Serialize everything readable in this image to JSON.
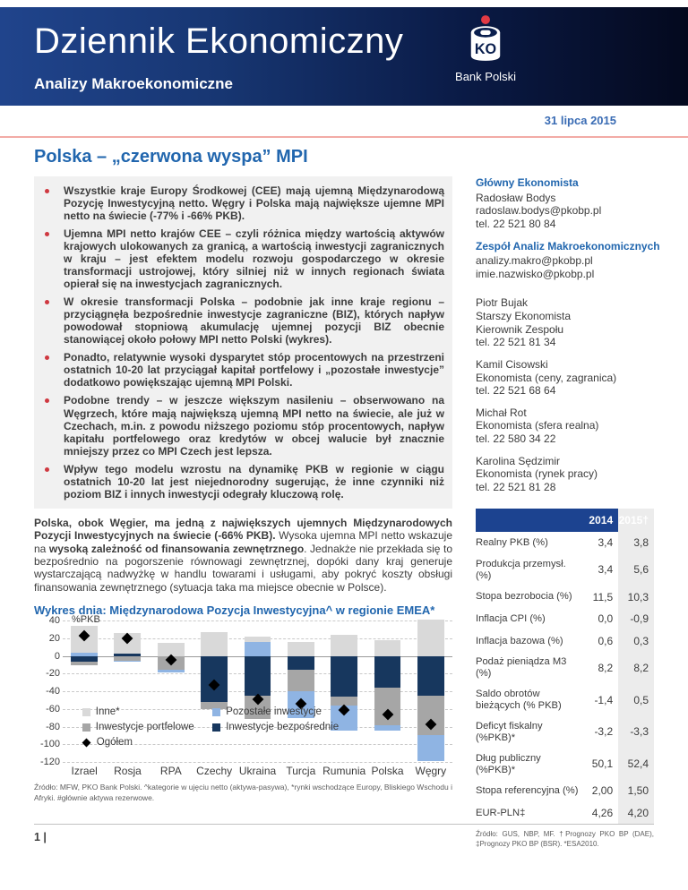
{
  "header": {
    "title": "Dziennik Ekonomiczny",
    "subtitle": "Analizy Makroekonomiczne",
    "brand": "Bank Polski"
  },
  "date": "31 lipca 2015",
  "article": {
    "title": "Polska – „czerwona wyspa” MPI",
    "bullets": [
      "Wszystkie kraje Europy Środkowej (CEE) mają ujemną Międzynarodową Pozycję Inwestycyjną netto. Węgry i Polska mają największe ujemne MPI netto na świecie (-77% i -66% PKB).",
      "Ujemna MPI netto krajów CEE – czyli różnica między wartością aktywów krajowych ulokowanych za granicą, a wartością inwestycji zagranicznych w kraju – jest efektem modelu rozwoju gospodarczego w okresie transformacji ustrojowej, który silniej niż w innych regionach świata opierał się na inwestycjach zagranicznych.",
      "W okresie transformacji Polska – podobnie jak inne kraje regionu – przyciągnęła bezpośrednie inwestycje zagraniczne (BIZ), których napływ powodował stopniową akumulację ujemnej pozycji BIZ obecnie stanowiącej około połowy MPI netto Polski (wykres).",
      "Ponadto, relatywnie wysoki dysparytet stóp procentowych na przestrzeni ostatnich 10-20 lat przyciągał kapitał portfelowy i „pozostałe inwestycje” dodatkowo powiększając ujemną MPI Polski.",
      "Podobne trendy – w jeszcze większym nasileniu – obserwowano na Węgrzech, które mają największą ujemną MPI netto na świecie, ale już w Czechach, m.in. z powodu niższego poziomu stóp procentowych, napływ kapitału portfelowego oraz kredytów w obcej walucie był znacznie mniejszy przez co MPI Czech jest lepsza.",
      "Wpływ tego modelu wzrostu na dynamikę PKB w regionie w ciągu ostatnich 10-20 lat jest niejednorodny sugerując, że inne czynniki niż poziom BIZ i innych inwestycji odegrały kluczową rolę."
    ],
    "paragraph": {
      "lead_bold": "Polska, obok Węgier, ma jedną z największych ujemnych Międzynarodowych Pozycji Inwestycyjnych na świecie (-66% PKB).",
      "mid": " Wysoka ujemna MPI netto wskazuje na ",
      "bold": "wysoką zależność od finansowania zewnętrznego",
      "rest": ". Jednakże nie przekłada się to bezpośrednio na pogorszenie równowagi zewnętrznej, dopóki dany kraj generuje wystarczającą nadwyżkę w handlu towarami i usługami, aby pokryć koszty obsługi finansowania zewnętrznego (sytuacja taka ma miejsce obecnie w Polsce)."
    },
    "chart_caption": "Wykres dnia: Międzynarodowa Pozycja Inwestycyjna^ w regionie EMEA*",
    "chart_footnote": "Źródło: MFW, PKO Bank Polski. ^kategorie w ujęciu netto (aktywa-pasywa), *rynki wschodzące Europy, Bliskiego Wschodu i Afryki. #głównie aktywa rezerwowe."
  },
  "sidebar": {
    "sections": [
      {
        "title": "Główny Ekonomista",
        "lines": [
          "Radosław Bodys",
          "radoslaw.bodys@pkobp.pl",
          "tel. 22 521 80 84"
        ]
      },
      {
        "title": "Zespół Analiz Makroekonomicznych",
        "lines": [
          "analizy.makro@pkobp.pl",
          "imie.nazwisko@pkobp.pl"
        ]
      }
    ],
    "team": [
      {
        "lines": [
          "Piotr Bujak",
          "Starszy Ekonomista",
          "Kierownik Zespołu",
          "tel. 22 521 81 34"
        ]
      },
      {
        "lines": [
          "Kamil Cisowski",
          "Ekonomista (ceny, zagranica)",
          "tel. 22 521 68 64"
        ]
      },
      {
        "lines": [
          "Michał Rot",
          "Ekonomista (sfera realna)",
          "tel. 22 580 34 22"
        ]
      },
      {
        "lines": [
          "Karolina Sędzimir",
          "Ekonomista (rynek pracy)",
          "tel. 22 521 81 28"
        ]
      }
    ]
  },
  "table": {
    "col_headers": [
      "2014",
      "2015†"
    ],
    "rows": [
      {
        "label": "Realny PKB (%)",
        "v2014": "3,4",
        "v2015": "3,8"
      },
      {
        "label": "Produkcja przemysł. (%)",
        "v2014": "3,4",
        "v2015": "5,6"
      },
      {
        "label": "Stopa bezrobocia (%)",
        "v2014": "11,5",
        "v2015": "10,3"
      },
      {
        "label": "Inflacja CPI (%)",
        "v2014": "0,0",
        "v2015": "-0,9"
      },
      {
        "label": "Inflacja bazowa (%)",
        "v2014": "0,6",
        "v2015": "0,3"
      },
      {
        "label": "Podaż pieniądza M3 (%)",
        "v2014": "8,2",
        "v2015": "8,2"
      },
      {
        "label": "Saldo obrotów bieżących (% PKB)",
        "v2014": "-1,4",
        "v2015": "0,5"
      },
      {
        "label": "Deficyt fiskalny (%PKB)*",
        "v2014": "-3,2",
        "v2015": "-3,3"
      },
      {
        "label": "Dług publiczny (%PKB)*",
        "v2014": "50,1",
        "v2015": "52,4"
      },
      {
        "label": "Stopa referencyjna (%)",
        "v2014": "2,00",
        "v2015": "1,50"
      },
      {
        "label": "EUR-PLN‡",
        "v2014": "4,26",
        "v2015": "4,20"
      }
    ],
    "footnote": "Źródło: GUS, NBP, MF. †Prognozy PKO BP (DAE), ‡Prognozy PKO BP (BSR). *ESA2010."
  },
  "footer": {
    "page": "1 |"
  },
  "colors": {
    "accent_blue": "#2166ae",
    "header_navy_left": "#20448c",
    "header_navy_right": "#04091e",
    "table_header_navy": "#1c4390",
    "red_accent": "#cf3840",
    "pink_rule": "#f2aba6",
    "bullet_block_bg": "#f1f1f1",
    "column_stripe": "#ececec"
  },
  "chart_data": {
    "type": "bar",
    "subtype": "stacked-bar-with-total-markers",
    "title": "Wykres dnia: Międzynarodowa Pozycja Inwestycyjna^ w regionie EMEA*",
    "ylabel": "%PKB",
    "xlabel": "",
    "ylim": [
      -120,
      40
    ],
    "ytick_step": 20,
    "grid": true,
    "legend_position": "inside-lower-left",
    "categories": [
      "Izrael",
      "Rosja",
      "RPA",
      "Czechy",
      "Ukraina",
      "Turcja",
      "Rumunia",
      "Polska",
      "Węgry"
    ],
    "series": [
      {
        "name": "Inne*",
        "color": "#d9d9d9",
        "values": [
          30,
          23,
          15,
          27,
          6,
          16,
          24,
          18,
          41
        ]
      },
      {
        "name": "Pozostałe inwestycje",
        "color": "#8fb4e3",
        "values": [
          4,
          -2,
          -3,
          0,
          16,
          -30,
          -29,
          -7,
          -29
        ]
      },
      {
        "name": "Inwestycje portfelowe",
        "color": "#a6a6a6",
        "values": [
          -4,
          -5,
          -16,
          -8,
          -26,
          -24,
          -10,
          -42,
          -45
        ]
      },
      {
        "name": "Inwestycje bezpośrednie",
        "color": "#17375e",
        "values": [
          -7,
          3,
          0,
          -52,
          -45,
          -16,
          -46,
          -36,
          -45
        ]
      }
    ],
    "markers": {
      "name": "Ogółem",
      "color": "#000000",
      "values": [
        23,
        20,
        -4,
        -33,
        -49,
        -54,
        -61,
        -66,
        -77
      ]
    },
    "stack_order": [
      "Inwestycje bezpośrednie",
      "Inwestycje portfelowe",
      "Pozostałe inwestycje",
      "Inne*"
    ],
    "legend": [
      {
        "label": "Inne*",
        "marker": "square",
        "color": "#d9d9d9"
      },
      {
        "label": "Pozostałe inwestycje",
        "marker": "square",
        "color": "#8fb4e3"
      },
      {
        "label": "Inwestycje portfelowe",
        "marker": "square",
        "color": "#a6a6a6"
      },
      {
        "label": "Inwestycje bezpośrednie",
        "marker": "square",
        "color": "#17375e"
      },
      {
        "label": "Ogółem",
        "marker": "diamond",
        "color": "#000000"
      }
    ]
  }
}
